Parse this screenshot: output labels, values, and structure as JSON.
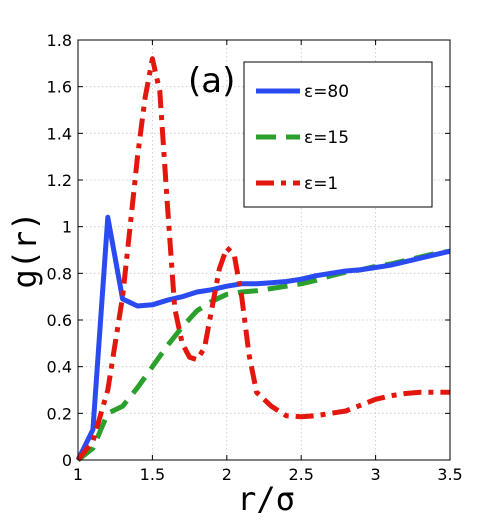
{
  "chart_data": {
    "type": "line",
    "panel_label": "(a)",
    "xlabel": "r/σ",
    "ylabel": "g(r)",
    "xlim": [
      1,
      3.5
    ],
    "ylim": [
      0,
      1.8
    ],
    "xticks": [
      1,
      1.5,
      2,
      2.5,
      3,
      3.5
    ],
    "xtick_labels": [
      "1",
      "1.5",
      "2",
      "2.5",
      "3",
      "3.5"
    ],
    "yticks": [
      0,
      0.2,
      0.4,
      0.6,
      0.8,
      1,
      1.2,
      1.4,
      1.6,
      1.8
    ],
    "ytick_labels": [
      "0",
      "0.2",
      "0.4",
      "0.6",
      "0.8",
      "1",
      "1.2",
      "1.4",
      "1.6",
      "1.8"
    ],
    "grid": true,
    "legend_position": "top-right",
    "series": [
      {
        "name": "ε=80",
        "color": "#2b4bf2",
        "dash": "solid",
        "x": [
          1.0,
          1.1,
          1.2,
          1.3,
          1.4,
          1.5,
          1.6,
          1.7,
          1.8,
          1.9,
          2.0,
          2.1,
          2.2,
          2.3,
          2.4,
          2.5,
          2.6,
          2.7,
          2.8,
          2.9,
          3.0,
          3.1,
          3.2,
          3.3,
          3.4,
          3.5
        ],
        "y": [
          0.0,
          0.13,
          1.04,
          0.69,
          0.66,
          0.665,
          0.685,
          0.7,
          0.72,
          0.73,
          0.745,
          0.755,
          0.755,
          0.76,
          0.765,
          0.775,
          0.79,
          0.8,
          0.81,
          0.815,
          0.825,
          0.835,
          0.85,
          0.865,
          0.88,
          0.895
        ]
      },
      {
        "name": "ε=15",
        "color": "#2ca02c",
        "dash": "dashed",
        "x": [
          1.0,
          1.1,
          1.2,
          1.3,
          1.4,
          1.5,
          1.6,
          1.7,
          1.8,
          1.9,
          2.0,
          2.1,
          2.2,
          2.3,
          2.4,
          2.5,
          2.6,
          2.7,
          2.8,
          2.9,
          3.0,
          3.1,
          3.2,
          3.3,
          3.4,
          3.5
        ],
        "y": [
          0.0,
          0.05,
          0.2,
          0.23,
          0.31,
          0.4,
          0.49,
          0.57,
          0.64,
          0.68,
          0.71,
          0.72,
          0.725,
          0.735,
          0.745,
          0.755,
          0.77,
          0.79,
          0.805,
          0.815,
          0.83,
          0.84,
          0.855,
          0.87,
          0.885,
          0.895
        ]
      },
      {
        "name": "ε=1",
        "color": "#e3170d",
        "dash": "dashdot",
        "x": [
          1.0,
          1.1,
          1.2,
          1.3,
          1.35,
          1.4,
          1.45,
          1.5,
          1.55,
          1.6,
          1.65,
          1.7,
          1.75,
          1.8,
          1.85,
          1.9,
          1.95,
          2.0,
          2.05,
          2.1,
          2.15,
          2.2,
          2.3,
          2.4,
          2.5,
          2.6,
          2.7,
          2.8,
          2.9,
          3.0,
          3.1,
          3.2,
          3.3,
          3.4,
          3.5
        ],
        "y": [
          0.0,
          0.08,
          0.3,
          0.7,
          1.0,
          1.3,
          1.55,
          1.72,
          1.58,
          1.1,
          0.65,
          0.5,
          0.44,
          0.43,
          0.48,
          0.65,
          0.82,
          0.91,
          0.88,
          0.7,
          0.45,
          0.29,
          0.23,
          0.19,
          0.185,
          0.19,
          0.2,
          0.21,
          0.235,
          0.26,
          0.275,
          0.285,
          0.29,
          0.29,
          0.29
        ]
      }
    ]
  }
}
